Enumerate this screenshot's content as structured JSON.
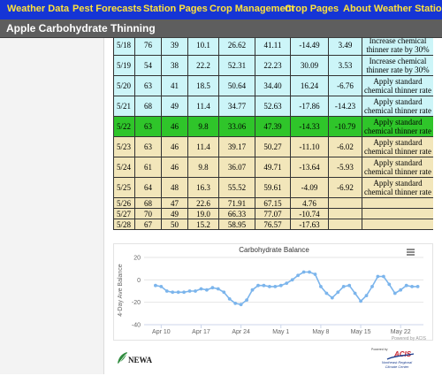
{
  "nav": {
    "items": [
      "Weather Data",
      "Pest Forecasts",
      "Station Pages",
      "Crop Management",
      "Crop Pages",
      "About Weather Stations"
    ]
  },
  "page": {
    "title": "Apple Carbohydrate Thinning"
  },
  "table": {
    "rows": [
      {
        "date": "5/18",
        "c1": "76",
        "c2": "39",
        "c3": "10.1",
        "c4": "26.62",
        "c5": "41.11",
        "c6": "-14.49",
        "c7": "3.49",
        "rec": [
          "Increase chemical",
          "thinner rate by 30%"
        ],
        "color": "cyan"
      },
      {
        "date": "5/19",
        "c1": "54",
        "c2": "38",
        "c3": "22.2",
        "c4": "52.31",
        "c5": "22.23",
        "c6": "30.09",
        "c7": "3.53",
        "rec": [
          "Increase chemical",
          "thinner rate by 30%"
        ],
        "color": "cyan"
      },
      {
        "date": "5/20",
        "c1": "63",
        "c2": "41",
        "c3": "18.5",
        "c4": "50.64",
        "c5": "34.40",
        "c6": "16.24",
        "c7": "-6.76",
        "rec": [
          "Apply standard",
          "chemical thinner rate"
        ],
        "color": "cyan"
      },
      {
        "date": "5/21",
        "c1": "68",
        "c2": "49",
        "c3": "11.4",
        "c4": "34.77",
        "c5": "52.63",
        "c6": "-17.86",
        "c7": "-14.23",
        "rec": [
          "Apply standard",
          "chemical thinner rate"
        ],
        "color": "cyan"
      },
      {
        "date": "5/22",
        "c1": "63",
        "c2": "46",
        "c3": "9.8",
        "c4": "33.06",
        "c5": "47.39",
        "c6": "-14.33",
        "c7": "-10.79",
        "rec": [
          "Apply standard",
          "chemical thinner rate"
        ],
        "color": "green"
      },
      {
        "date": "5/23",
        "c1": "63",
        "c2": "46",
        "c3": "11.4",
        "c4": "39.17",
        "c5": "50.27",
        "c6": "-11.10",
        "c7": "-6.02",
        "rec": [
          "Apply standard",
          "chemical thinner rate"
        ],
        "color": "tan"
      },
      {
        "date": "5/24",
        "c1": "61",
        "c2": "46",
        "c3": "9.8",
        "c4": "36.07",
        "c5": "49.71",
        "c6": "-13.64",
        "c7": "-5.93",
        "rec": [
          "Apply standard",
          "chemical thinner rate"
        ],
        "color": "tan"
      },
      {
        "date": "5/25",
        "c1": "64",
        "c2": "48",
        "c3": "16.3",
        "c4": "55.52",
        "c5": "59.61",
        "c6": "-4.09",
        "c7": "-6.92",
        "rec": [
          "Apply standard",
          "chemical thinner rate"
        ],
        "color": "tan"
      },
      {
        "date": "5/26",
        "c1": "68",
        "c2": "47",
        "c3": "22.6",
        "c4": "71.91",
        "c5": "67.15",
        "c6": "4.76",
        "c7": "",
        "rec": [],
        "color": "tan"
      },
      {
        "date": "5/27",
        "c1": "70",
        "c2": "49",
        "c3": "19.0",
        "c4": "66.33",
        "c5": "77.07",
        "c6": "-10.74",
        "c7": "",
        "rec": [],
        "color": "tan"
      },
      {
        "date": "5/28",
        "c1": "67",
        "c2": "50",
        "c3": "15.2",
        "c4": "58.95",
        "c5": "76.57",
        "c6": "-17.63",
        "c7": "",
        "rec": [],
        "color": "tan"
      }
    ]
  },
  "chart_data": {
    "type": "line",
    "title": "Carbohydrate Balance",
    "ylabel": "4-Day Ave Balance",
    "ylim": [
      -40,
      20
    ],
    "yticks": [
      -40,
      -20,
      0,
      20
    ],
    "xlim": [
      "2018-04-07",
      "2018-05-26"
    ],
    "xticks": [
      {
        "label": "Apr 10",
        "date": "2018-04-10"
      },
      {
        "label": "Apr 17",
        "date": "2018-04-17"
      },
      {
        "label": "Apr 24",
        "date": "2018-04-24"
      },
      {
        "label": "May 1",
        "date": "2018-05-01"
      },
      {
        "label": "May 8",
        "date": "2018-05-08"
      },
      {
        "label": "May 15",
        "date": "2018-05-15"
      },
      {
        "label": "May 22",
        "date": "2018-05-22"
      }
    ],
    "grid": true,
    "series_color": "#7cb5ec",
    "series": [
      {
        "x": [
          "2018-04-09",
          "2018-04-10",
          "2018-04-11",
          "2018-04-12",
          "2018-04-13",
          "2018-04-14",
          "2018-04-15",
          "2018-04-16",
          "2018-04-17",
          "2018-04-18",
          "2018-04-19",
          "2018-04-20",
          "2018-04-21",
          "2018-04-22",
          "2018-04-23",
          "2018-04-24",
          "2018-04-25",
          "2018-04-26",
          "2018-04-27",
          "2018-04-28",
          "2018-04-29",
          "2018-04-30",
          "2018-05-01",
          "2018-05-02",
          "2018-05-03",
          "2018-05-04",
          "2018-05-05",
          "2018-05-06",
          "2018-05-07",
          "2018-05-08",
          "2018-05-09",
          "2018-05-10",
          "2018-05-11",
          "2018-05-12",
          "2018-05-13",
          "2018-05-14",
          "2018-05-15",
          "2018-05-16",
          "2018-05-17",
          "2018-05-18",
          "2018-05-19",
          "2018-05-20",
          "2018-05-21",
          "2018-05-22",
          "2018-05-23",
          "2018-05-24",
          "2018-05-25"
        ],
        "y": [
          -5,
          -6,
          -10,
          -11,
          -11,
          -11,
          -10,
          -10,
          -8,
          -9,
          -7,
          -8,
          -11,
          -17,
          -21,
          -22,
          -18,
          -9,
          -5,
          -5,
          -6,
          -6,
          -5,
          -3,
          0,
          4,
          7,
          7,
          5,
          -6,
          -12,
          -16,
          -11,
          -6,
          -5,
          -12,
          -19,
          -14,
          -6,
          3,
          3,
          -4,
          -12,
          -9,
          -5,
          -6,
          -6
        ]
      }
    ],
    "credit": "Powered by ACIS"
  },
  "footer": {
    "left_logo": "NEWA",
    "right_logo_top": "Powered by",
    "right_logo_main": "ACIS",
    "right_logo_sub1": "Northeast Regional",
    "right_logo_sub2": "Climate Center"
  }
}
